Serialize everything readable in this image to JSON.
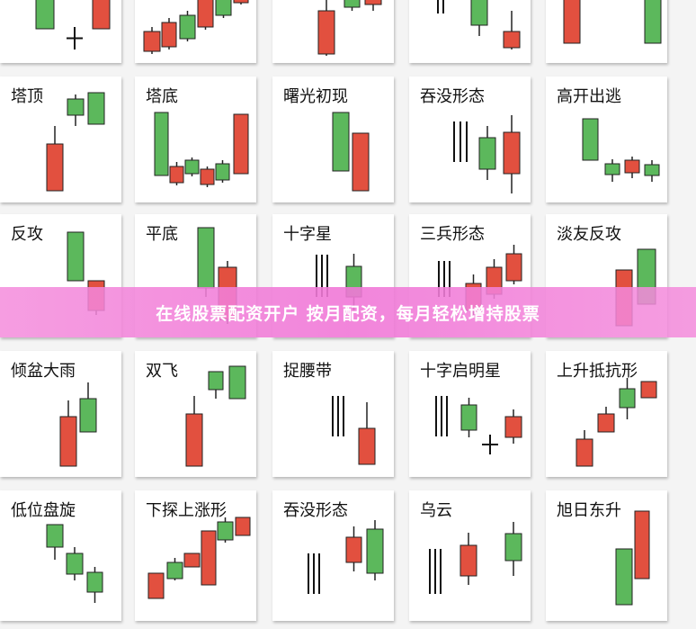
{
  "colors": {
    "bullish": "#5cb85c",
    "bearish": "#e2503f",
    "banner": "#f28cd8"
  },
  "patterns": [
    [
      "",
      "",
      "",
      "",
      ""
    ],
    [
      "塔顶",
      "塔底",
      "曙光初现",
      "吞没形态",
      "高开出逃"
    ],
    [
      "反攻",
      "平底",
      "十字星",
      "三兵形态",
      "淡友反攻"
    ],
    [
      "倾盆大雨",
      "双飞",
      "捉腰带",
      "十字启明星",
      "上升抵抗形"
    ],
    [
      "低位盘旋",
      "下探上涨形",
      "吞没形态",
      "乌云",
      "旭日东升"
    ]
  ],
  "banner": {
    "text": "在线股票配资开户 按月配资，每月轻松增持股票"
  }
}
